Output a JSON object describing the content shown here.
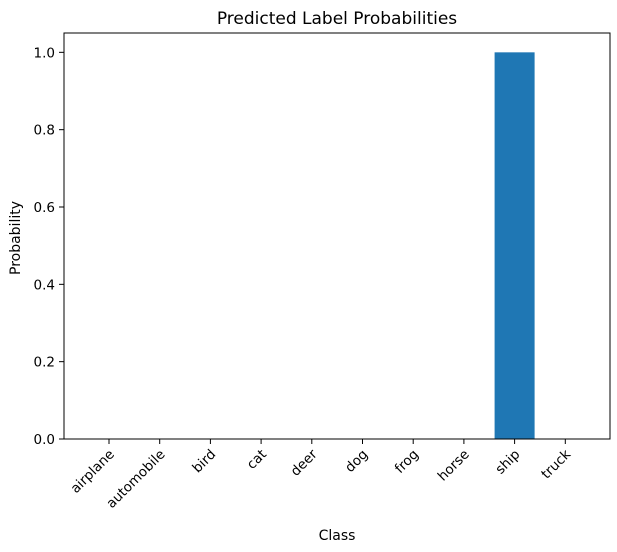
{
  "chart_data": {
    "type": "bar",
    "title": "Predicted Label Probabilities",
    "xlabel": "Class",
    "ylabel": "Probability",
    "categories": [
      "airplane",
      "automobile",
      "bird",
      "cat",
      "deer",
      "dog",
      "frog",
      "horse",
      "ship",
      "truck"
    ],
    "values": [
      0.0,
      0.0,
      0.0,
      0.0,
      0.0,
      0.0,
      0.0,
      0.0,
      1.0,
      0.0
    ],
    "ylim": [
      0.0,
      1.05
    ],
    "yticks": [
      0.0,
      0.2,
      0.4,
      0.6,
      0.8,
      1.0
    ],
    "ytick_labels": [
      "0.0",
      "0.2",
      "0.4",
      "0.6",
      "0.8",
      "1.0"
    ],
    "grid": false,
    "bar_color": "#1f77b4"
  }
}
